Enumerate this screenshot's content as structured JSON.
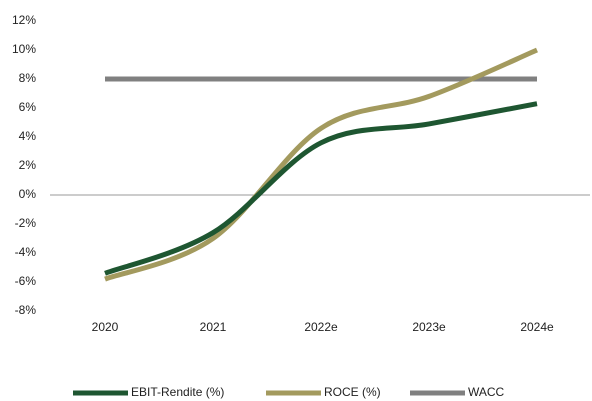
{
  "chart_data": {
    "type": "line",
    "categories": [
      "2020",
      "2021",
      "2022e",
      "2023e",
      "2024e"
    ],
    "series": [
      {
        "name": "EBIT-Rendite (%)",
        "color": "#1e5631",
        "values": [
          -5.4,
          -2.6,
          3.6,
          4.9,
          6.3
        ]
      },
      {
        "name": "ROCE (%)",
        "color": "#a39a5e",
        "values": [
          -5.8,
          -3.0,
          4.6,
          6.8,
          10.0
        ]
      },
      {
        "name": "WACC",
        "color": "#808080",
        "values": [
          8,
          8,
          8,
          8,
          8
        ]
      }
    ],
    "ylim": [
      -8,
      12
    ],
    "yticks": [
      {
        "value": 12,
        "label": "12%"
      },
      {
        "value": 10,
        "label": "10%"
      },
      {
        "value": 8,
        "label": "8%"
      },
      {
        "value": 6,
        "label": "6%"
      },
      {
        "value": 4,
        "label": "4%"
      },
      {
        "value": 2,
        "label": "2%"
      },
      {
        "value": 0,
        "label": "0%"
      },
      {
        "value": -2,
        "label": "-2%"
      },
      {
        "value": -4,
        "label": "-4%"
      },
      {
        "value": -6,
        "label": "-6%"
      },
      {
        "value": -8,
        "label": "-8%"
      }
    ],
    "legend": "bottom",
    "smooth": true
  }
}
